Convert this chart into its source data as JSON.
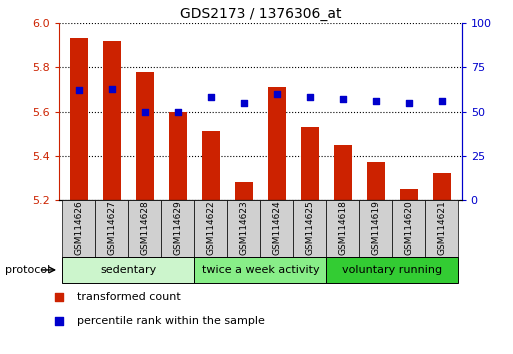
{
  "title": "GDS2173 / 1376306_at",
  "samples": [
    "GSM114626",
    "GSM114627",
    "GSM114628",
    "GSM114629",
    "GSM114622",
    "GSM114623",
    "GSM114624",
    "GSM114625",
    "GSM114618",
    "GSM114619",
    "GSM114620",
    "GSM114621"
  ],
  "transformed_count": [
    5.93,
    5.92,
    5.78,
    5.6,
    5.51,
    5.28,
    5.71,
    5.53,
    5.45,
    5.37,
    5.25,
    5.32
  ],
  "percentile_rank": [
    62,
    63,
    50,
    50,
    58,
    55,
    60,
    58,
    57,
    56,
    55,
    56
  ],
  "ylim_left": [
    5.2,
    6.0
  ],
  "ylim_right": [
    0,
    100
  ],
  "yticks_left": [
    5.2,
    5.4,
    5.6,
    5.8,
    6.0
  ],
  "yticks_right": [
    0,
    25,
    50,
    75,
    100
  ],
  "bar_color": "#cc2200",
  "dot_color": "#0000cc",
  "bar_bottom": 5.2,
  "groups": [
    {
      "label": "sedentary",
      "start": 0,
      "end": 4,
      "color": "#ccf5cc"
    },
    {
      "label": "twice a week activity",
      "start": 4,
      "end": 8,
      "color": "#88ee88"
    },
    {
      "label": "voluntary running",
      "start": 8,
      "end": 12,
      "color": "#33cc33"
    }
  ],
  "protocol_label": "protocol",
  "legend_items": [
    {
      "label": "transformed count",
      "color": "#cc2200"
    },
    {
      "label": "percentile rank within the sample",
      "color": "#0000cc"
    }
  ],
  "tick_label_color_left": "#cc2200",
  "tick_label_color_right": "#0000cc",
  "bar_width": 0.55,
  "sample_box_color": "#d0d0d0"
}
